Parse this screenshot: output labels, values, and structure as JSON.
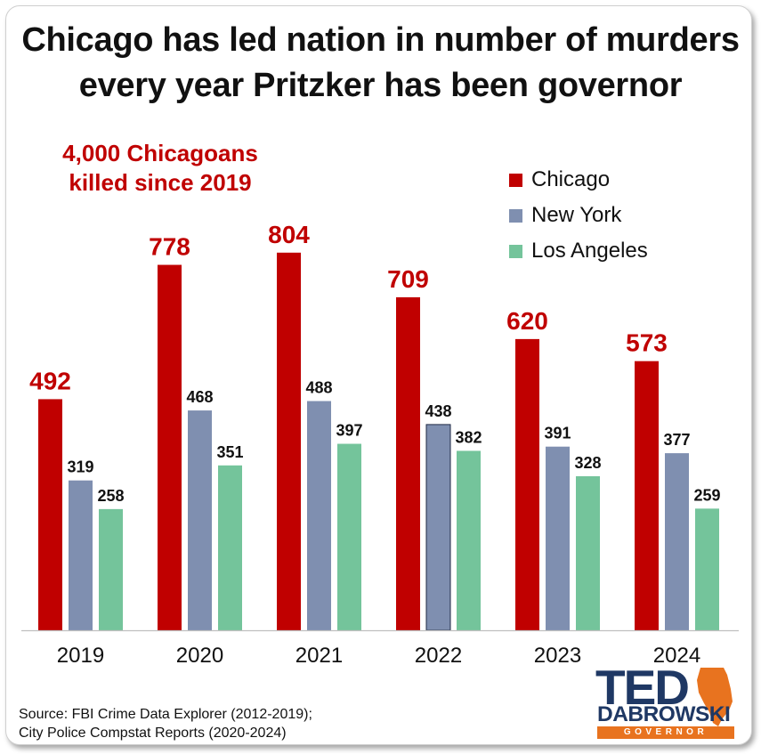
{
  "title_line1": "Chicago has led nation in number of murders",
  "title_line2": "every year Pritzker has been governor",
  "subtitle_line1": "4,000 Chicagoans",
  "subtitle_line2": "killed since 2019",
  "source_line1": "Source: FBI Crime Data Explorer (2012-2019);",
  "source_line2": "City Police Compstat Reports (2020-2024)",
  "logo": {
    "ted": "TED",
    "dabrowski": "DABROWSKI",
    "governor": "GOVERNOR"
  },
  "colors": {
    "chicago": "#c00000",
    "new_york": "#7f8fb0",
    "los_angeles": "#74c49b",
    "brand_navy": "#1f3864",
    "brand_orange": "#e8731f"
  },
  "chart_data": {
    "type": "bar",
    "categories": [
      "2019",
      "2020",
      "2021",
      "2022",
      "2023",
      "2024"
    ],
    "series": [
      {
        "name": "Chicago",
        "values": [
          492,
          778,
          804,
          709,
          620,
          573
        ]
      },
      {
        "name": "New York",
        "values": [
          319,
          468,
          488,
          438,
          391,
          377
        ]
      },
      {
        "name": "Los Angeles",
        "values": [
          258,
          351,
          397,
          382,
          328,
          259
        ]
      }
    ],
    "ylim": [
      0,
      840
    ],
    "grid": false,
    "legend": "top-right",
    "data_labels": true
  }
}
